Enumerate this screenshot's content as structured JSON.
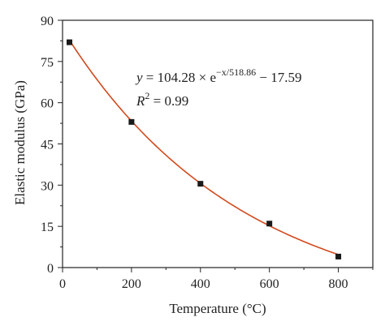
{
  "chart_data": {
    "type": "scatter",
    "xlabel": "Temperature (°C)",
    "ylabel": "Elastic modulus (GPa)",
    "xlim": [
      0,
      900
    ],
    "ylim": [
      0,
      90
    ],
    "x_ticks": [
      "0",
      "200",
      "400",
      "600",
      "800"
    ],
    "y_ticks": [
      "0",
      "15",
      "30",
      "45",
      "60",
      "75",
      "90"
    ],
    "grid": false,
    "series": [
      {
        "x": [
          20,
          200,
          400,
          600,
          800
        ],
        "y": [
          82,
          53,
          30.5,
          16,
          4
        ]
      }
    ],
    "fit": {
      "a": 104.28,
      "b": 518.86,
      "c": 17.59,
      "x_range": [
        20,
        800
      ],
      "color": "#d24a1e"
    },
    "annotation": {
      "y_prefix": "y",
      "eq_main": " = 104.28 × e",
      "eq_exp": "−x/518.86",
      "eq_tail": " − 17.59",
      "r_label": "R",
      "r_exp": "2",
      "r_value": " = 0.99"
    },
    "colors": {
      "marker": "#1a1a1a",
      "axis": "#222222"
    }
  }
}
